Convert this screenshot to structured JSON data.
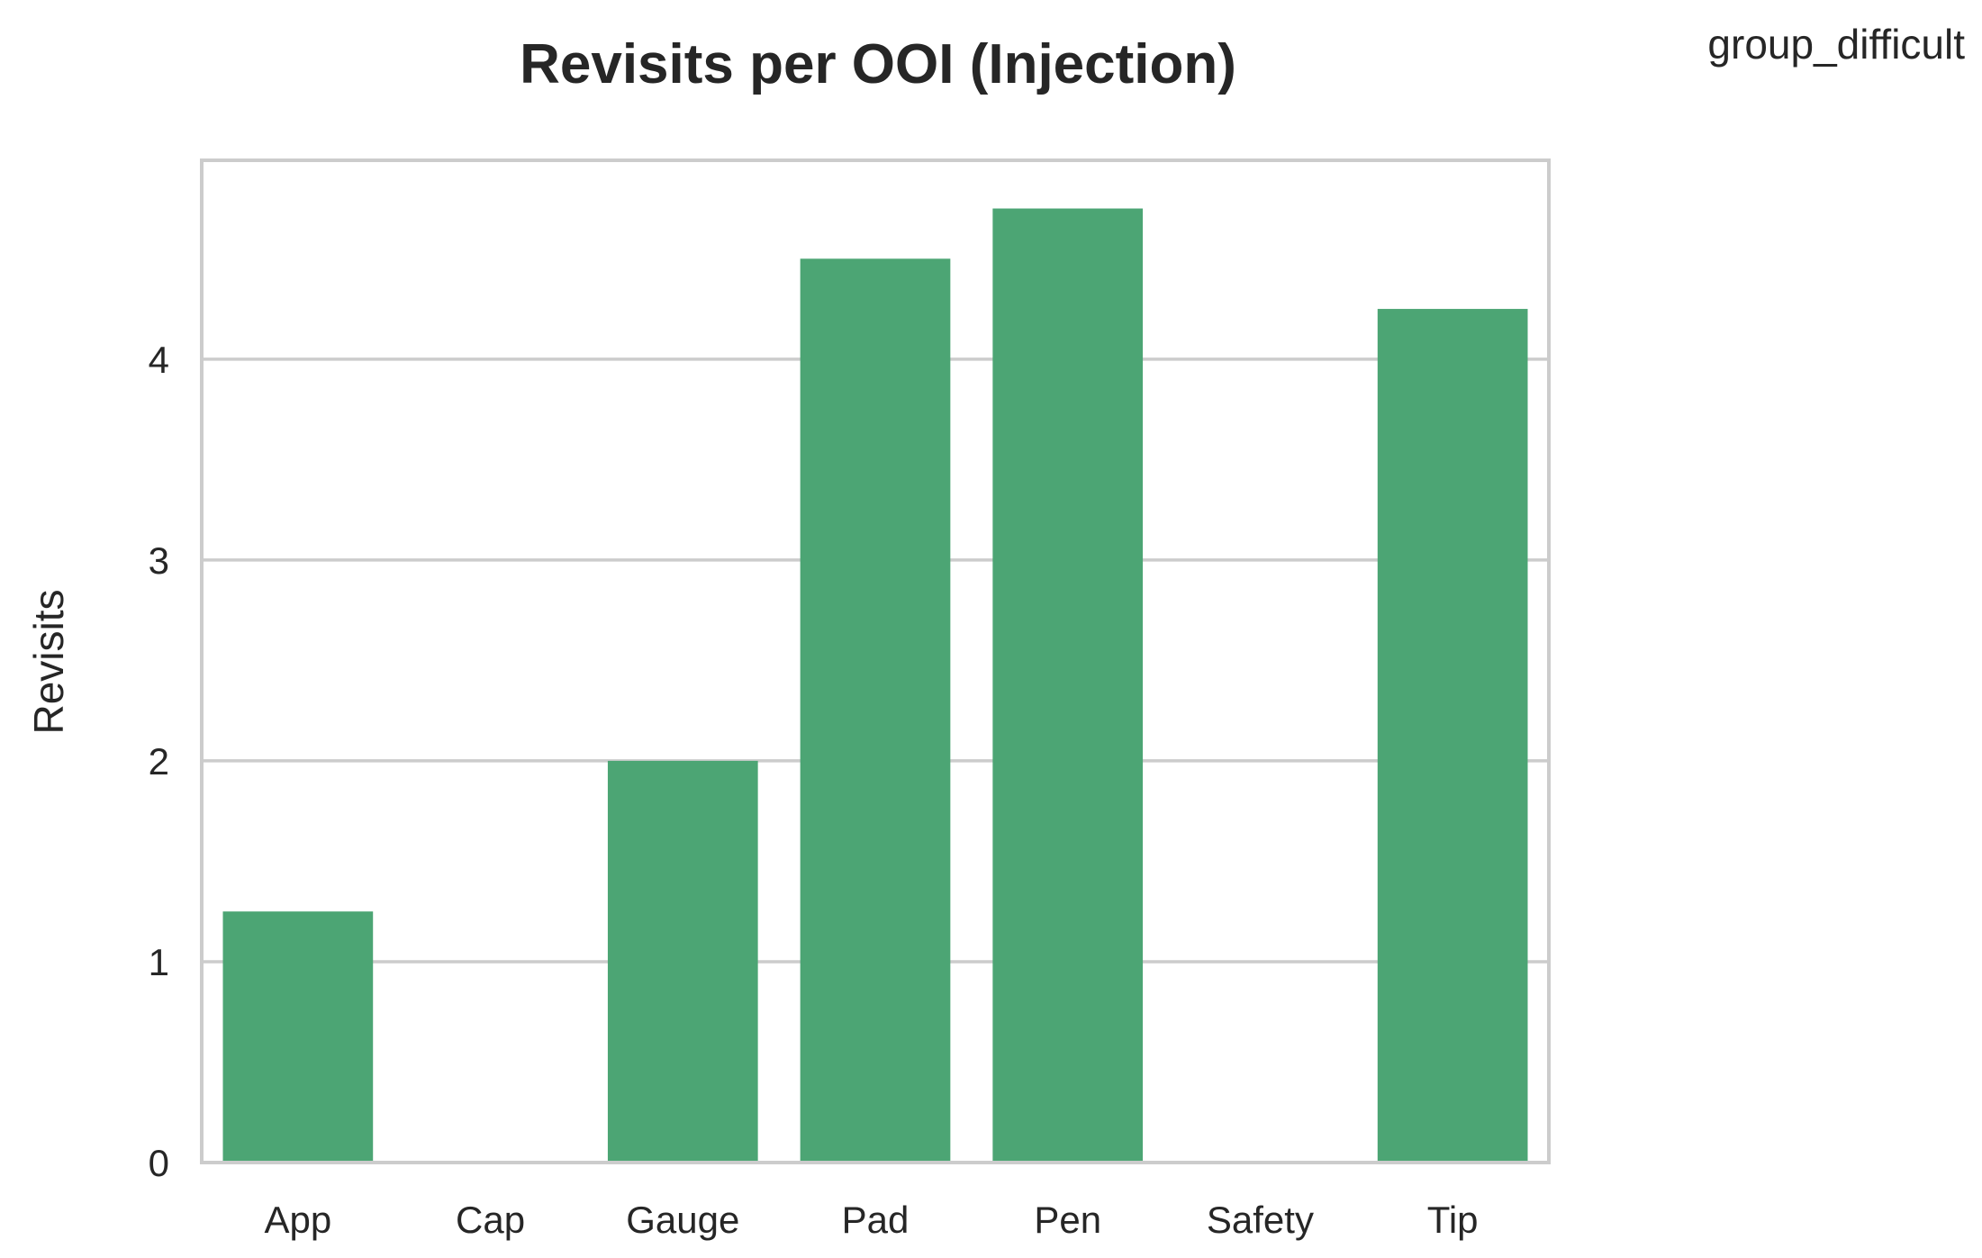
{
  "chart_data": {
    "type": "bar",
    "title": "Revisits per OOI (Injection)",
    "xlabel": "",
    "ylabel": "Revisits",
    "legend_title": "group_difficult",
    "legend_placement": "top-right",
    "categories": [
      "App",
      "Cap",
      "Gauge",
      "Pad",
      "Pen",
      "Safety",
      "Tip"
    ],
    "values": [
      1.25,
      0,
      2.0,
      4.5,
      4.75,
      0,
      4.25
    ],
    "ylim": [
      0,
      4.99
    ],
    "yticks": [
      0,
      1,
      2,
      3,
      4
    ],
    "grid": "horizontal",
    "bar_color": "#4ca574"
  }
}
